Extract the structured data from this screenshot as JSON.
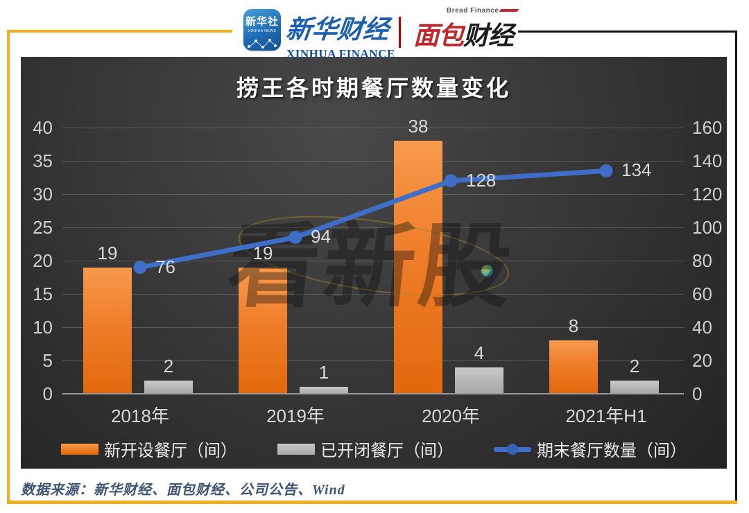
{
  "header": {
    "xinhua_app": {
      "name_cn": "新华社",
      "name_en": "XINHUA NEWS"
    },
    "xinhua_finance": {
      "name_cn": "新华财经",
      "name_en": "XINHUA FINANCE"
    },
    "bread_finance": {
      "name_en": "Bread Finance",
      "name_cn_red": "面包",
      "name_cn_black": "财经"
    }
  },
  "chart": {
    "title": "捞王各时期餐厅数量变化",
    "watermark": "看新股"
  },
  "chart_data": {
    "type": "bar",
    "subtype": "bar+line dual-axis",
    "title": "捞王各时期餐厅数量变化",
    "categories": [
      "2018年",
      "2019年",
      "2020年",
      "2021年H1"
    ],
    "series": [
      {
        "name": "新开设餐厅（间）",
        "type": "bar",
        "axis": "left",
        "color": "#ED7D31",
        "values": [
          19,
          19,
          38,
          8
        ]
      },
      {
        "name": "已开闭餐厅（间）",
        "type": "bar",
        "axis": "left",
        "color": "#B3B3B3",
        "values": [
          2,
          1,
          4,
          2
        ]
      },
      {
        "name": "期末餐厅数量（间）",
        "type": "line",
        "axis": "right",
        "color": "#3E6EC8",
        "values": [
          76,
          94,
          128,
          134
        ]
      }
    ],
    "left_axis": {
      "min": 0,
      "max": 40,
      "step": 5,
      "ticks": [
        0,
        5,
        10,
        15,
        20,
        25,
        30,
        35,
        40
      ]
    },
    "right_axis": {
      "min": 0,
      "max": 160,
      "step": 20,
      "ticks": [
        0,
        20,
        40,
        60,
        80,
        100,
        120,
        140,
        160
      ]
    },
    "grid": true,
    "legend_position": "bottom",
    "background": "dark"
  },
  "footer": {
    "source": "数据来源：新华财经、面包财经、公司公告、Wind"
  },
  "colors": {
    "frame_yellow": "#F2B01E",
    "frame_black": "#161616",
    "bar_orange": "#ED7D31",
    "bar_gray": "#B3B3B3",
    "line_blue": "#3E6EC8",
    "xinhua_blue": "#1C5FAF",
    "bread_red": "#C0272D"
  }
}
